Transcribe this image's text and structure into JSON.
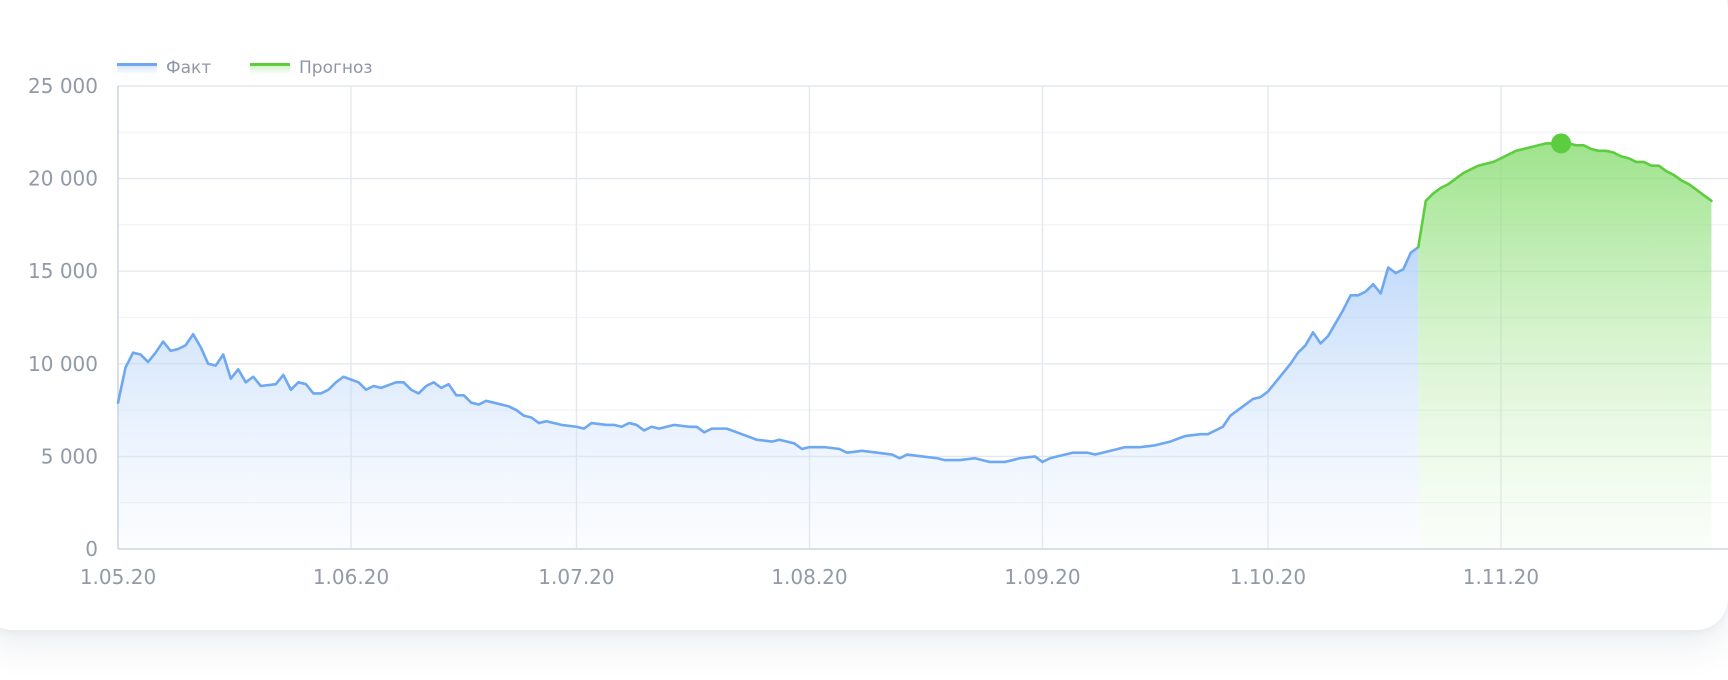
{
  "legend": [
    {
      "label": "Факт",
      "color": "#6ea8f0"
    },
    {
      "label": "Прогноз",
      "color": "#5ccd3e"
    }
  ],
  "chart_data": {
    "type": "area",
    "title": "",
    "xlabel": "",
    "ylabel": "",
    "ylim": [
      0,
      25000
    ],
    "yticks": [
      0,
      5000,
      10000,
      15000,
      20000,
      25000
    ],
    "ytick_labels": [
      "0",
      "5 000",
      "10 000",
      "15 000",
      "20 000",
      "25 000"
    ],
    "xlim": [
      "2020-05-01",
      "2020-11-29"
    ],
    "xticks": [
      "2020-05-01",
      "2020-06-01",
      "2020-07-01",
      "2020-08-01",
      "2020-09-01",
      "2020-10-01",
      "2020-11-01"
    ],
    "xtick_labels": [
      "1.05.20",
      "1.06.20",
      "1.07.20",
      "1.08.20",
      "1.09.20",
      "1.10.20",
      "1.11.20"
    ],
    "grid": true,
    "legend_position": "top-left",
    "series": [
      {
        "name": "Факт",
        "color": "#6ea8f0",
        "points": [
          [
            "2020-05-01",
            7900
          ],
          [
            "2020-05-02",
            9800
          ],
          [
            "2020-05-03",
            10600
          ],
          [
            "2020-05-04",
            10500
          ],
          [
            "2020-05-05",
            10100
          ],
          [
            "2020-05-06",
            10600
          ],
          [
            "2020-05-07",
            11200
          ],
          [
            "2020-05-08",
            10700
          ],
          [
            "2020-05-09",
            10800
          ],
          [
            "2020-05-10",
            11000
          ],
          [
            "2020-05-11",
            11600
          ],
          [
            "2020-05-12",
            10900
          ],
          [
            "2020-05-13",
            10000
          ],
          [
            "2020-05-14",
            9900
          ],
          [
            "2020-05-15",
            10500
          ],
          [
            "2020-05-16",
            9200
          ],
          [
            "2020-05-17",
            9700
          ],
          [
            "2020-05-18",
            9000
          ],
          [
            "2020-05-19",
            9300
          ],
          [
            "2020-05-20",
            8800
          ],
          [
            "2020-05-22",
            8900
          ],
          [
            "2020-05-23",
            9400
          ],
          [
            "2020-05-24",
            8600
          ],
          [
            "2020-05-25",
            9000
          ],
          [
            "2020-05-26",
            8900
          ],
          [
            "2020-05-27",
            8400
          ],
          [
            "2020-05-28",
            8400
          ],
          [
            "2020-05-29",
            8600
          ],
          [
            "2020-05-30",
            9000
          ],
          [
            "2020-05-31",
            9300
          ],
          [
            "2020-06-02",
            9000
          ],
          [
            "2020-06-03",
            8600
          ],
          [
            "2020-06-04",
            8800
          ],
          [
            "2020-06-05",
            8700
          ],
          [
            "2020-06-07",
            9000
          ],
          [
            "2020-06-08",
            9000
          ],
          [
            "2020-06-09",
            8600
          ],
          [
            "2020-06-10",
            8400
          ],
          [
            "2020-06-11",
            8800
          ],
          [
            "2020-06-12",
            9000
          ],
          [
            "2020-06-13",
            8700
          ],
          [
            "2020-06-14",
            8900
          ],
          [
            "2020-06-15",
            8300
          ],
          [
            "2020-06-16",
            8300
          ],
          [
            "2020-06-17",
            7900
          ],
          [
            "2020-06-18",
            7800
          ],
          [
            "2020-06-19",
            8000
          ],
          [
            "2020-06-20",
            7900
          ],
          [
            "2020-06-22",
            7700
          ],
          [
            "2020-06-23",
            7500
          ],
          [
            "2020-06-24",
            7200
          ],
          [
            "2020-06-25",
            7100
          ],
          [
            "2020-06-26",
            6800
          ],
          [
            "2020-06-27",
            6900
          ],
          [
            "2020-06-29",
            6700
          ],
          [
            "2020-07-01",
            6600
          ],
          [
            "2020-07-02",
            6500
          ],
          [
            "2020-07-03",
            6800
          ],
          [
            "2020-07-05",
            6700
          ],
          [
            "2020-07-06",
            6700
          ],
          [
            "2020-07-07",
            6600
          ],
          [
            "2020-07-08",
            6800
          ],
          [
            "2020-07-09",
            6700
          ],
          [
            "2020-07-10",
            6400
          ],
          [
            "2020-07-11",
            6600
          ],
          [
            "2020-07-12",
            6500
          ],
          [
            "2020-07-14",
            6700
          ],
          [
            "2020-07-16",
            6600
          ],
          [
            "2020-07-17",
            6600
          ],
          [
            "2020-07-18",
            6300
          ],
          [
            "2020-07-19",
            6500
          ],
          [
            "2020-07-21",
            6500
          ],
          [
            "2020-07-23",
            6200
          ],
          [
            "2020-07-25",
            5900
          ],
          [
            "2020-07-27",
            5800
          ],
          [
            "2020-07-28",
            5900
          ],
          [
            "2020-07-30",
            5700
          ],
          [
            "2020-07-31",
            5400
          ],
          [
            "2020-08-01",
            5500
          ],
          [
            "2020-08-03",
            5500
          ],
          [
            "2020-08-05",
            5400
          ],
          [
            "2020-08-06",
            5200
          ],
          [
            "2020-08-08",
            5300
          ],
          [
            "2020-08-10",
            5200
          ],
          [
            "2020-08-12",
            5100
          ],
          [
            "2020-08-13",
            4900
          ],
          [
            "2020-08-14",
            5100
          ],
          [
            "2020-08-16",
            5000
          ],
          [
            "2020-08-18",
            4900
          ],
          [
            "2020-08-19",
            4800
          ],
          [
            "2020-08-20",
            4800
          ],
          [
            "2020-08-21",
            4800
          ],
          [
            "2020-08-23",
            4900
          ],
          [
            "2020-08-25",
            4700
          ],
          [
            "2020-08-27",
            4700
          ],
          [
            "2020-08-29",
            4900
          ],
          [
            "2020-08-31",
            5000
          ],
          [
            "2020-09-01",
            4700
          ],
          [
            "2020-09-02",
            4900
          ],
          [
            "2020-09-03",
            5000
          ],
          [
            "2020-09-05",
            5200
          ],
          [
            "2020-09-07",
            5200
          ],
          [
            "2020-09-08",
            5100
          ],
          [
            "2020-09-10",
            5300
          ],
          [
            "2020-09-12",
            5500
          ],
          [
            "2020-09-14",
            5500
          ],
          [
            "2020-09-16",
            5600
          ],
          [
            "2020-09-18",
            5800
          ],
          [
            "2020-09-20",
            6100
          ],
          [
            "2020-09-22",
            6200
          ],
          [
            "2020-09-23",
            6200
          ],
          [
            "2020-09-25",
            6600
          ],
          [
            "2020-09-26",
            7200
          ],
          [
            "2020-09-27",
            7500
          ],
          [
            "2020-09-28",
            7800
          ],
          [
            "2020-09-29",
            8100
          ],
          [
            "2020-09-30",
            8200
          ],
          [
            "2020-10-01",
            8500
          ],
          [
            "2020-10-02",
            9000
          ],
          [
            "2020-10-03",
            9500
          ],
          [
            "2020-10-04",
            10000
          ],
          [
            "2020-10-05",
            10600
          ],
          [
            "2020-10-06",
            11000
          ],
          [
            "2020-10-07",
            11700
          ],
          [
            "2020-10-08",
            11100
          ],
          [
            "2020-10-09",
            11500
          ],
          [
            "2020-10-10",
            12200
          ],
          [
            "2020-10-11",
            12900
          ],
          [
            "2020-10-12",
            13700
          ],
          [
            "2020-10-13",
            13700
          ],
          [
            "2020-10-14",
            13900
          ],
          [
            "2020-10-15",
            14300
          ],
          [
            "2020-10-16",
            13800
          ],
          [
            "2020-10-17",
            15200
          ],
          [
            "2020-10-18",
            14900
          ],
          [
            "2020-10-19",
            15100
          ],
          [
            "2020-10-20",
            16000
          ],
          [
            "2020-10-21",
            16300
          ]
        ]
      },
      {
        "name": "Прогноз",
        "color": "#5ccd3e",
        "points": [
          [
            "2020-10-21",
            16300
          ],
          [
            "2020-10-22",
            18800
          ],
          [
            "2020-10-23",
            19200
          ],
          [
            "2020-10-24",
            19500
          ],
          [
            "2020-10-25",
            19700
          ],
          [
            "2020-10-26",
            20000
          ],
          [
            "2020-10-27",
            20300
          ],
          [
            "2020-10-28",
            20500
          ],
          [
            "2020-10-29",
            20700
          ],
          [
            "2020-10-30",
            20800
          ],
          [
            "2020-10-31",
            20900
          ],
          [
            "2020-11-01",
            21100
          ],
          [
            "2020-11-02",
            21300
          ],
          [
            "2020-11-03",
            21500
          ],
          [
            "2020-11-04",
            21600
          ],
          [
            "2020-11-05",
            21700
          ],
          [
            "2020-11-06",
            21800
          ],
          [
            "2020-11-07",
            21900
          ],
          [
            "2020-11-08",
            21900
          ],
          [
            "2020-11-09",
            21900
          ],
          [
            "2020-11-10",
            21900
          ],
          [
            "2020-11-11",
            21800
          ],
          [
            "2020-11-12",
            21800
          ],
          [
            "2020-11-13",
            21600
          ],
          [
            "2020-11-14",
            21500
          ],
          [
            "2020-11-15",
            21500
          ],
          [
            "2020-11-16",
            21400
          ],
          [
            "2020-11-17",
            21200
          ],
          [
            "2020-11-18",
            21100
          ],
          [
            "2020-11-19",
            20900
          ],
          [
            "2020-11-20",
            20900
          ],
          [
            "2020-11-21",
            20700
          ],
          [
            "2020-11-22",
            20700
          ],
          [
            "2020-11-23",
            20400
          ],
          [
            "2020-11-24",
            20200
          ],
          [
            "2020-11-25",
            19900
          ],
          [
            "2020-11-26",
            19700
          ],
          [
            "2020-11-27",
            19400
          ],
          [
            "2020-11-28",
            19100
          ],
          [
            "2020-11-29",
            18800
          ]
        ]
      }
    ],
    "highlight_point": {
      "series": "Прогноз",
      "x": "2020-11-09",
      "y": 21900
    }
  }
}
